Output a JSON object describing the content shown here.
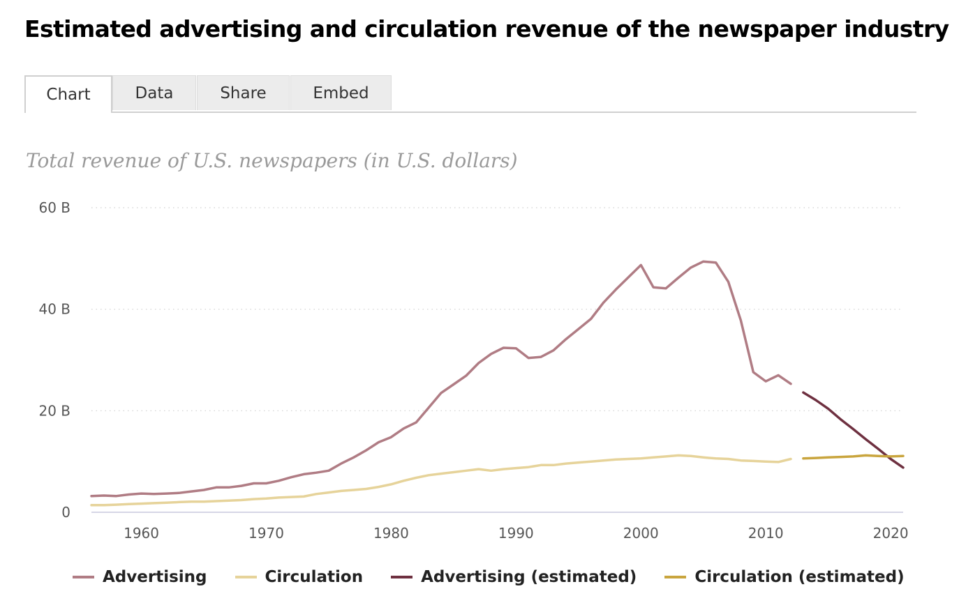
{
  "page": {
    "title": "Estimated advertising and circulation revenue of the newspaper industry",
    "tabs": [
      {
        "label": "Chart",
        "active": true
      },
      {
        "label": "Data",
        "active": false
      },
      {
        "label": "Share",
        "active": false
      },
      {
        "label": "Embed",
        "active": false
      }
    ]
  },
  "chart_data": {
    "type": "line",
    "title": "Estimated advertising and circulation revenue of the newspaper industry",
    "subtitle": "Total revenue of U.S. newspapers (in U.S. dollars)",
    "xlabel": "",
    "ylabel": "",
    "xlim": [
      1956,
      2021
    ],
    "ylim": [
      0,
      60
    ],
    "x_ticks": [
      1960,
      1970,
      1980,
      1990,
      2000,
      2010,
      2020
    ],
    "x_tick_labels": [
      "1960",
      "1970",
      "1980",
      "1990",
      "2000",
      "2010",
      "2020"
    ],
    "y_ticks": [
      0,
      20,
      40,
      60
    ],
    "y_tick_labels": [
      "0",
      "20 B",
      "40 B",
      "60 B"
    ],
    "grid": "horizontal dotted",
    "legend_position": "bottom",
    "series": [
      {
        "name": "Advertising",
        "color": "#b07c84",
        "x": [
          1956,
          1957,
          1958,
          1959,
          1960,
          1961,
          1962,
          1963,
          1964,
          1965,
          1966,
          1967,
          1968,
          1969,
          1970,
          1971,
          1972,
          1973,
          1974,
          1975,
          1976,
          1977,
          1978,
          1979,
          1980,
          1981,
          1982,
          1983,
          1984,
          1985,
          1986,
          1987,
          1988,
          1989,
          1990,
          1991,
          1992,
          1993,
          1994,
          1995,
          1996,
          1997,
          1998,
          1999,
          2000,
          2001,
          2002,
          2003,
          2004,
          2005,
          2006,
          2007,
          2008,
          2009,
          2010,
          2011,
          2012
        ],
        "values": [
          3.2,
          3.3,
          3.2,
          3.5,
          3.7,
          3.6,
          3.7,
          3.8,
          4.1,
          4.4,
          4.9,
          4.9,
          5.2,
          5.7,
          5.7,
          6.2,
          6.9,
          7.5,
          7.8,
          8.2,
          9.6,
          10.8,
          12.2,
          13.8,
          14.8,
          16.5,
          17.7,
          20.6,
          23.5,
          25.2,
          26.9,
          29.4,
          31.2,
          32.4,
          32.3,
          30.4,
          30.6,
          31.9,
          34.1,
          36.1,
          38.1,
          41.3,
          43.9,
          46.3,
          48.7,
          44.3,
          44.1,
          46.2,
          48.2,
          49.4,
          49.2,
          45.4,
          37.8,
          27.6,
          25.8,
          27.0,
          25.3
        ]
      },
      {
        "name": "Circulation",
        "color": "#e6d39a",
        "x": [
          1956,
          1957,
          1958,
          1959,
          1960,
          1961,
          1962,
          1963,
          1964,
          1965,
          1966,
          1967,
          1968,
          1969,
          1970,
          1971,
          1972,
          1973,
          1974,
          1975,
          1976,
          1977,
          1978,
          1979,
          1980,
          1981,
          1982,
          1983,
          1984,
          1985,
          1986,
          1987,
          1988,
          1989,
          1990,
          1991,
          1992,
          1993,
          1994,
          1995,
          1996,
          1997,
          1998,
          1999,
          2000,
          2001,
          2002,
          2003,
          2004,
          2005,
          2006,
          2007,
          2008,
          2009,
          2010,
          2011,
          2012
        ],
        "values": [
          1.4,
          1.4,
          1.5,
          1.6,
          1.7,
          1.8,
          1.9,
          2.0,
          2.1,
          2.1,
          2.2,
          2.3,
          2.4,
          2.6,
          2.7,
          2.9,
          3.0,
          3.1,
          3.6,
          3.9,
          4.2,
          4.4,
          4.6,
          5.0,
          5.5,
          6.2,
          6.8,
          7.3,
          7.6,
          7.9,
          8.2,
          8.5,
          8.2,
          8.5,
          8.7,
          8.9,
          9.3,
          9.3,
          9.6,
          9.8,
          10.0,
          10.2,
          10.4,
          10.5,
          10.6,
          10.8,
          11.0,
          11.2,
          11.1,
          10.8,
          10.6,
          10.5,
          10.2,
          10.1,
          10.0,
          9.9,
          10.5
        ]
      },
      {
        "name": "Advertising (estimated)",
        "color": "#6e3040",
        "x": [
          2013,
          2014,
          2015,
          2016,
          2017,
          2018,
          2019,
          2020,
          2021
        ],
        "values": [
          23.6,
          22.1,
          20.4,
          18.3,
          16.4,
          14.4,
          12.5,
          10.5,
          8.8
        ]
      },
      {
        "name": "Circulation (estimated)",
        "color": "#c9a53e",
        "x": [
          2013,
          2014,
          2015,
          2016,
          2017,
          2018,
          2019,
          2020,
          2021
        ],
        "values": [
          10.6,
          10.7,
          10.8,
          10.9,
          11.0,
          11.2,
          11.1,
          11.0,
          11.1
        ]
      }
    ]
  }
}
